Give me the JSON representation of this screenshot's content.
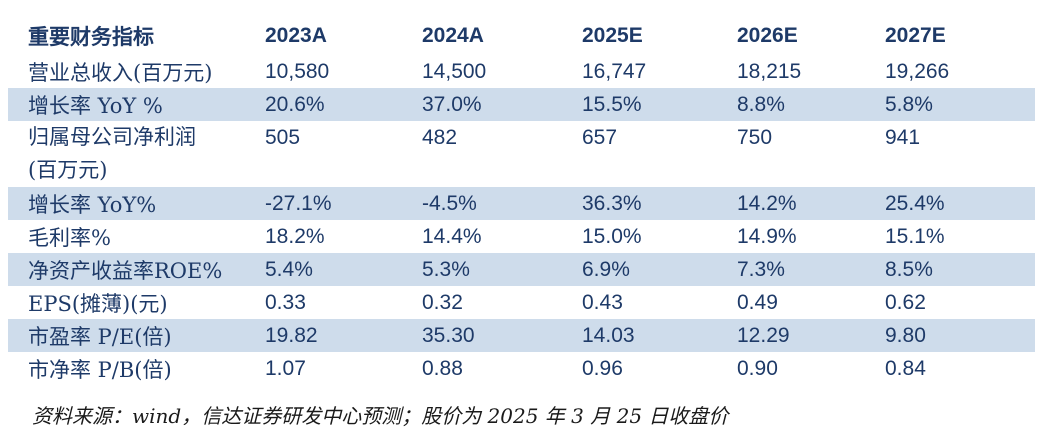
{
  "colors": {
    "text_navy": "#1E3A68",
    "row_shade": "#CEDCEB",
    "source_text": "#1a1a1a",
    "background": "#ffffff"
  },
  "table": {
    "header": {
      "label": "重要财务指标",
      "columns": [
        "2023A",
        "2024A",
        "2025E",
        "2026E",
        "2027E"
      ]
    },
    "rows": [
      {
        "label": "营业总收入(百万元)",
        "values": [
          "10,580",
          "14,500",
          "16,747",
          "18,215",
          "19,266"
        ]
      },
      {
        "label": "增长率 YoY %",
        "values": [
          "20.6%",
          "37.0%",
          "15.5%",
          "8.8%",
          "5.8%"
        ]
      },
      {
        "label": "归属母公司净利润\n(百万元)",
        "values": [
          "505",
          "482",
          "657",
          "750",
          "941"
        ]
      },
      {
        "label": "增长率 YoY%",
        "values": [
          "-27.1%",
          "-4.5%",
          "36.3%",
          "14.2%",
          "25.4%"
        ]
      },
      {
        "label": "毛利率%",
        "values": [
          "18.2%",
          "14.4%",
          "15.0%",
          "14.9%",
          "15.1%"
        ]
      },
      {
        "label": "净资产收益率ROE%",
        "values": [
          "5.4%",
          "5.3%",
          "6.9%",
          "7.3%",
          "8.5%"
        ]
      },
      {
        "label": "EPS(摊薄)(元)",
        "values": [
          "0.33",
          "0.32",
          "0.43",
          "0.49",
          "0.62"
        ]
      },
      {
        "label": "市盈率 P/E(倍)",
        "values": [
          "19.82",
          "35.30",
          "14.03",
          "12.29",
          "9.80"
        ]
      },
      {
        "label": "市净率 P/B(倍)",
        "values": [
          "1.07",
          "0.88",
          "0.96",
          "0.90",
          "0.84"
        ]
      }
    ],
    "source_note": "资料来源：wind，信达证券研发中心预测；股价为 2025 年 3 月 25 日收盘价"
  }
}
